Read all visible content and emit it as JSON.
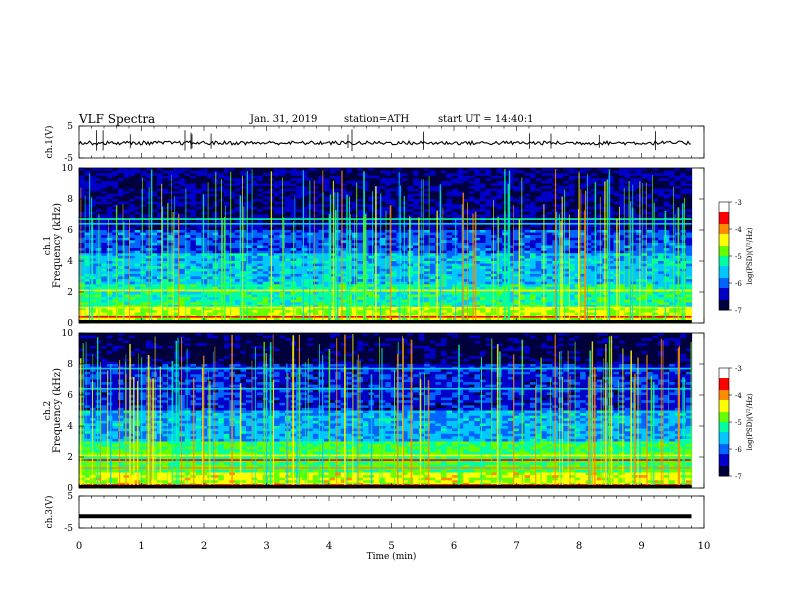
{
  "header": {
    "title": "VLF Spectra",
    "date": "Jan. 31, 2019",
    "station": "station=ATH",
    "start": "start UT = 14:40:1"
  },
  "chart_data": [
    {
      "type": "line",
      "panel": "ch1-waveform",
      "ylabel": "ch.1(V)",
      "ylim": [
        -5,
        5
      ],
      "yticks": [
        "5",
        "-5"
      ],
      "xlim": [
        0,
        10
      ],
      "baseline": -0.3
    },
    {
      "type": "heatmap",
      "panel": "ch1-spectrogram",
      "ylabel": "ch.1 Frequency (kHz)",
      "ylim": [
        0,
        10
      ],
      "yticks": [
        "10",
        "8",
        "6",
        "4",
        "2",
        "0"
      ],
      "xlim": [
        0,
        9.8
      ],
      "colorbar": {
        "label": "log(PSD)(V²/Hz)",
        "range": [
          -7,
          -3
        ],
        "ticks": [
          "-3",
          "-4",
          "-5",
          "-6",
          "-7"
        ]
      },
      "bands_khz": [
        {
          "f": 0.4,
          "level": -3.5
        },
        {
          "f": 1.0,
          "level": -4.3
        },
        {
          "f": 2.1,
          "level": -4.5
        },
        {
          "f": 6.7,
          "level": -5.3
        },
        {
          "f": 6.4,
          "level": -5.4
        }
      ]
    },
    {
      "type": "heatmap",
      "panel": "ch2-spectrogram",
      "ylabel": "ch.2 Frequency (kHz)",
      "ylim": [
        0,
        10
      ],
      "yticks": [
        "10",
        "8",
        "6",
        "4",
        "2",
        "0"
      ],
      "xlim": [
        0,
        9.8
      ],
      "colorbar": {
        "label": "log(PSD)(V²/Hz)",
        "range": [
          -7,
          -3
        ],
        "ticks": [
          "-3",
          "-4",
          "-5",
          "-6",
          "-7"
        ]
      },
      "bands_khz": [
        {
          "f": 0.2,
          "level": -3.5
        },
        {
          "f": 1.3,
          "level": -4.0
        },
        {
          "f": 1.8,
          "level": -3.8
        },
        {
          "f": 2.1,
          "level": -4.3
        },
        {
          "f": 7.7,
          "level": -5.5
        },
        {
          "f": 6.4,
          "level": -5.5
        }
      ]
    },
    {
      "type": "line",
      "panel": "ch3-waveform",
      "ylabel": "ch.3(V)",
      "ylim": [
        -5,
        5
      ],
      "yticks": [
        "5",
        "-5"
      ],
      "xlim": [
        0,
        9.8
      ],
      "baseline": -1.3
    }
  ],
  "xaxis": {
    "label": "Time (min)",
    "ticks": [
      "0",
      "1",
      "2",
      "3",
      "4",
      "5",
      "6",
      "7",
      "8",
      "9",
      "10"
    ],
    "range": [
      0,
      10
    ]
  },
  "colors": {
    "cmap": [
      "#00003c",
      "#0000c8",
      "#0064ff",
      "#00c8ff",
      "#00ffa0",
      "#64ff00",
      "#ffff00",
      "#ff8c00",
      "#ff0000",
      "#ffffff"
    ]
  }
}
